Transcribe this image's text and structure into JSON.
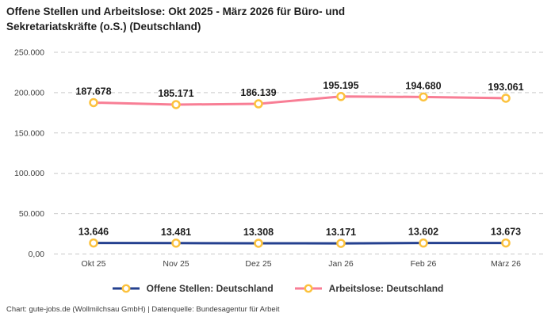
{
  "title": "Offene Stellen und Arbeitslose: Okt 2025 - März 2026 für Büro- und Sekretariatskräfte (o.S.) (Deutschland)",
  "footer": "Chart: gute-jobs.de (Wollmilchsau GmbH) | Datenquelle: Bundesagentur für Arbeit",
  "colors": {
    "offene_stellen_line": "#24408f",
    "arbeitslose_line": "#f87e95",
    "marker_ring": "#fcc23d",
    "marker_fill": "#ffffff",
    "gridline": "#c9c9c9"
  },
  "chart_data": {
    "type": "line",
    "title": "Offene Stellen und Arbeitslose: Okt 2025 - März 2026 für Büro- und Sekretariatskräfte (o.S.) (Deutschland)",
    "categories": [
      "Okt 25",
      "Nov 25",
      "Dez 25",
      "Jan 26",
      "Feb 26",
      "März 26"
    ],
    "series": [
      {
        "name": "Offene Stellen: Deutschland",
        "values": [
          13646,
          13481,
          13308,
          13171,
          13602,
          13673
        ],
        "labels": [
          "13.646",
          "13.481",
          "13.308",
          "13.171",
          "13.602",
          "13.673"
        ],
        "color": "#24408f"
      },
      {
        "name": "Arbeitslose: Deutschland",
        "values": [
          187678,
          185171,
          186139,
          195195,
          194680,
          193061
        ],
        "labels": [
          "187.678",
          "185.171",
          "186.139",
          "195.195",
          "194.680",
          "193.061"
        ],
        "color": "#f87e95"
      }
    ],
    "marker_color": "#fcc23d",
    "y_ticks": [
      "0,00",
      "50.000",
      "100.000",
      "150.000",
      "200.000",
      "250.000"
    ],
    "ylim": [
      0,
      250000
    ],
    "xlabel": "",
    "ylabel": "",
    "grid": "horizontal-dashed",
    "legend_position": "bottom"
  }
}
